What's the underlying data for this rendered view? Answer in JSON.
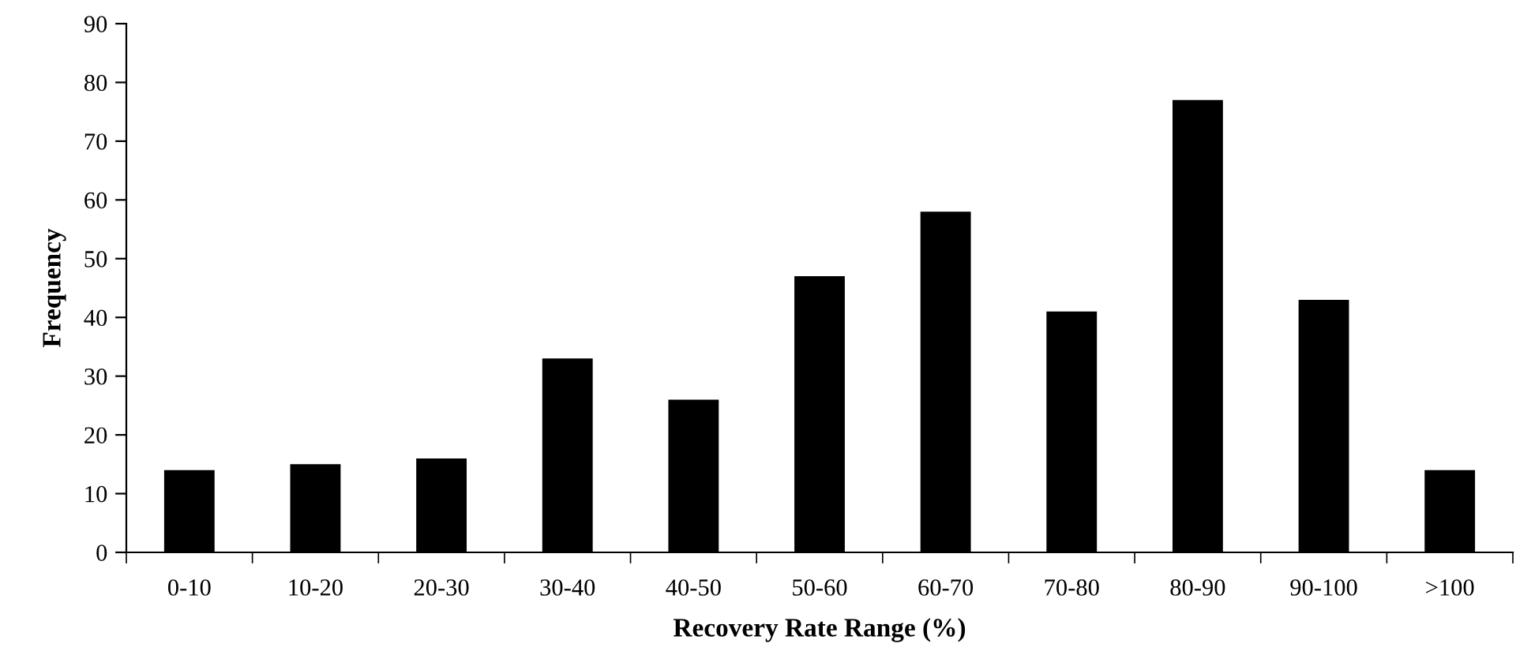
{
  "chart_data": {
    "type": "bar",
    "xlabel": "Recovery Rate Range (%)",
    "ylabel": "Frequency",
    "categories": [
      "0-10",
      "10-20",
      "20-30",
      "30-40",
      "40-50",
      "50-60",
      "60-70",
      "70-80",
      "80-90",
      "90-100",
      ">100"
    ],
    "series": [
      {
        "color": "#000000",
        "values": [
          14,
          15,
          16,
          33,
          26,
          47,
          58,
          41,
          77,
          43,
          14
        ]
      }
    ],
    "ylim": [
      0,
      90
    ],
    "yticks": [
      0,
      10,
      20,
      30,
      40,
      50,
      60,
      70,
      80,
      90
    ],
    "grid": false,
    "legend": false
  }
}
